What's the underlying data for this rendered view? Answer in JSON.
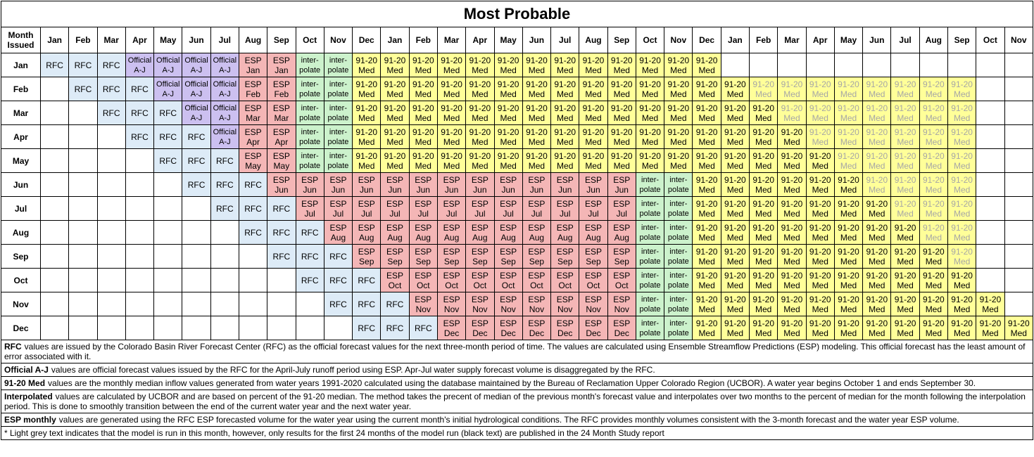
{
  "title": "Most Probable",
  "header": {
    "corner": "Month Issued",
    "months": [
      "Jan",
      "Feb",
      "Mar",
      "Apr",
      "May",
      "Jun",
      "Jul",
      "Aug",
      "Sep",
      "Oct",
      "Nov",
      "Dec",
      "Jan",
      "Feb",
      "Mar",
      "Apr",
      "May",
      "Jun",
      "Jul",
      "Aug",
      "Sep",
      "Oct",
      "Nov",
      "Dec",
      "Jan",
      "Feb",
      "Mar",
      "Apr",
      "May",
      "Jun",
      "Jul",
      "Aug",
      "Sep",
      "Oct",
      "Nov"
    ]
  },
  "rows": [
    {
      "month": "Jan",
      "cells": [
        "RFC",
        "RFC",
        "RFC",
        "Official A-J",
        "Official A-J",
        "Official A-J",
        "Official A-J",
        "ESP Jan",
        "ESP Jan",
        "inter-polate",
        "inter-polate",
        "91-20 Med",
        "91-20 Med",
        "91-20 Med",
        "91-20 Med",
        "91-20 Med",
        "91-20 Med",
        "91-20 Med",
        "91-20 Med",
        "91-20 Med",
        "91-20 Med",
        "91-20 Med",
        "91-20 Med",
        "91-20 Med",
        null,
        null,
        null,
        null,
        null,
        null,
        null,
        null,
        null,
        null,
        null
      ]
    },
    {
      "month": "Feb",
      "cells": [
        null,
        "RFC",
        "RFC",
        "RFC",
        "Official A-J",
        "Official A-J",
        "Official A-J",
        "ESP Feb",
        "ESP Feb",
        "inter-polate",
        "inter-polate",
        "91-20 Med",
        "91-20 Med",
        "91-20 Med",
        "91-20 Med",
        "91-20 Med",
        "91-20 Med",
        "91-20 Med",
        "91-20 Med",
        "91-20 Med",
        "91-20 Med",
        "91-20 Med",
        "91-20 Med",
        "91-20 Med",
        "91-20 Med",
        {
          "text": "91-20 Med",
          "grey": true
        },
        {
          "text": "91-20 Med",
          "grey": true
        },
        {
          "text": "91-20 Med",
          "grey": true
        },
        {
          "text": "91-20 Med",
          "grey": true
        },
        {
          "text": "91-20 Med",
          "grey": true
        },
        {
          "text": "91-20 Med",
          "grey": true
        },
        {
          "text": "91-20 Med",
          "grey": true
        },
        {
          "text": "91-20 Med",
          "grey": true
        },
        null,
        null
      ]
    },
    {
      "month": "Mar",
      "cells": [
        null,
        null,
        "RFC",
        "RFC",
        "RFC",
        "Official A-J",
        "Official A-J",
        "ESP Mar",
        "ESP Mar",
        "inter-polate",
        "inter-polate",
        "91-20 Med",
        "91-20 Med",
        "91-20 Med",
        "91-20 Med",
        "91-20 Med",
        "91-20 Med",
        "91-20 Med",
        "91-20 Med",
        "91-20 Med",
        "91-20 Med",
        "91-20 Med",
        "91-20 Med",
        "91-20 Med",
        "91-20 Med",
        "91-20 Med",
        {
          "text": "91-20 Med",
          "grey": true
        },
        {
          "text": "91-20 Med",
          "grey": true
        },
        {
          "text": "91-20 Med",
          "grey": true
        },
        {
          "text": "91-20 Med",
          "grey": true
        },
        {
          "text": "91-20 Med",
          "grey": true
        },
        {
          "text": "91-20 Med",
          "grey": true
        },
        {
          "text": "91-20 Med",
          "grey": true
        },
        null,
        null
      ]
    },
    {
      "month": "Apr",
      "cells": [
        null,
        null,
        null,
        "RFC",
        "RFC",
        "RFC",
        "Official A-J",
        "ESP Apr",
        "ESP Apr",
        "inter-polate",
        "inter-polate",
        "91-20 Med",
        "91-20 Med",
        "91-20 Med",
        "91-20 Med",
        "91-20 Med",
        "91-20 Med",
        "91-20 Med",
        "91-20 Med",
        "91-20 Med",
        "91-20 Med",
        "91-20 Med",
        "91-20 Med",
        "91-20 Med",
        "91-20 Med",
        "91-20 Med",
        "91-20 Med",
        {
          "text": "91-20 Med",
          "grey": true
        },
        {
          "text": "91-20 Med",
          "grey": true
        },
        {
          "text": "91-20 Med",
          "grey": true
        },
        {
          "text": "91-20 Med",
          "grey": true
        },
        {
          "text": "91-20 Med",
          "grey": true
        },
        {
          "text": "91-20 Med",
          "grey": true
        },
        null,
        null
      ]
    },
    {
      "month": "May",
      "cells": [
        null,
        null,
        null,
        null,
        "RFC",
        "RFC",
        "RFC",
        "ESP May",
        "ESP May",
        "inter-polate",
        "inter-polate",
        "91-20 Med",
        "91-20 Med",
        "91-20 Med",
        "91-20 Med",
        "91-20 Med",
        "91-20 Med",
        "91-20 Med",
        "91-20 Med",
        "91-20 Med",
        "91-20 Med",
        "91-20 Med",
        "91-20 Med",
        "91-20 Med",
        "91-20 Med",
        "91-20 Med",
        "91-20 Med",
        "91-20 Med",
        {
          "text": "91-20 Med",
          "grey": true
        },
        {
          "text": "91-20 Med",
          "grey": true
        },
        {
          "text": "91-20 Med",
          "grey": true
        },
        {
          "text": "91-20 Med",
          "grey": true
        },
        {
          "text": "91-20 Med",
          "grey": true
        },
        null,
        null
      ]
    },
    {
      "month": "Jun",
      "cells": [
        null,
        null,
        null,
        null,
        null,
        "RFC",
        "RFC",
        "RFC",
        "ESP Jun",
        "ESP Jun",
        "ESP Jun",
        "ESP Jun",
        "ESP Jun",
        "ESP Jun",
        "ESP Jun",
        "ESP Jun",
        "ESP Jun",
        "ESP Jun",
        "ESP Jun",
        "ESP Jun",
        "ESP Jun",
        "inter-polate",
        "inter-polate",
        "91-20 Med",
        "91-20 Med",
        "91-20 Med",
        "91-20 Med",
        "91-20 Med",
        "91-20 Med",
        {
          "text": "91-20 Med",
          "grey": true
        },
        {
          "text": "91-20 Med",
          "grey": true
        },
        {
          "text": "91-20 Med",
          "grey": true
        },
        {
          "text": "91-20 Med",
          "grey": true
        },
        null,
        null
      ]
    },
    {
      "month": "Jul",
      "cells": [
        null,
        null,
        null,
        null,
        null,
        null,
        "RFC",
        "RFC",
        "RFC",
        "ESP Jul",
        "ESP Jul",
        "ESP Jul",
        "ESP Jul",
        "ESP Jul",
        "ESP Jul",
        "ESP Jul",
        "ESP Jul",
        "ESP Jul",
        "ESP Jul",
        "ESP Jul",
        "ESP Jul",
        "inter-polate",
        "inter-polate",
        "91-20 Med",
        "91-20 Med",
        "91-20 Med",
        "91-20 Med",
        "91-20 Med",
        "91-20 Med",
        "91-20 Med",
        {
          "text": "91-20 Med",
          "grey": true
        },
        {
          "text": "91-20 Med",
          "grey": true
        },
        {
          "text": "91-20 Med",
          "grey": true
        },
        null,
        null
      ]
    },
    {
      "month": "Aug",
      "cells": [
        null,
        null,
        null,
        null,
        null,
        null,
        null,
        "RFC",
        "RFC",
        "RFC",
        "ESP Aug",
        "ESP Aug",
        "ESP Aug",
        "ESP Aug",
        "ESP Aug",
        "ESP Aug",
        "ESP Aug",
        "ESP Aug",
        "ESP Aug",
        "ESP Aug",
        "ESP Aug",
        "inter-polate",
        "inter-polate",
        "91-20 Med",
        "91-20 Med",
        "91-20 Med",
        "91-20 Med",
        "91-20 Med",
        "91-20 Med",
        "91-20 Med",
        "91-20 Med",
        {
          "text": "91-20 Med",
          "grey": true
        },
        {
          "text": "91-20 Med",
          "grey": true
        },
        null,
        null
      ]
    },
    {
      "month": "Sep",
      "cells": [
        null,
        null,
        null,
        null,
        null,
        null,
        null,
        null,
        "RFC",
        "RFC",
        "RFC",
        "ESP Sep",
        "ESP Sep",
        "ESP Sep",
        "ESP Sep",
        "ESP Sep",
        "ESP Sep",
        "ESP Sep",
        "ESP Sep",
        "ESP Sep",
        "ESP Sep",
        "inter-polate",
        "inter-polate",
        "91-20 Med",
        "91-20 Med",
        "91-20 Med",
        "91-20 Med",
        "91-20 Med",
        "91-20 Med",
        "91-20 Med",
        "91-20 Med",
        "91-20 Med",
        {
          "text": "91-20 Med",
          "grey": true
        },
        null,
        null
      ]
    },
    {
      "month": "Oct",
      "cells": [
        null,
        null,
        null,
        null,
        null,
        null,
        null,
        null,
        null,
        "RFC",
        "RFC",
        "RFC",
        "ESP Oct",
        "ESP Oct",
        "ESP Oct",
        "ESP Oct",
        "ESP Oct",
        "ESP Oct",
        "ESP Oct",
        "ESP Oct",
        "ESP Oct",
        "inter-polate",
        "inter-polate",
        "91-20 Med",
        "91-20 Med",
        "91-20 Med",
        "91-20 Med",
        "91-20 Med",
        "91-20 Med",
        "91-20 Med",
        "91-20 Med",
        "91-20 Med",
        "91-20 Med",
        null,
        null
      ]
    },
    {
      "month": "Nov",
      "cells": [
        null,
        null,
        null,
        null,
        null,
        null,
        null,
        null,
        null,
        null,
        "RFC",
        "RFC",
        "RFC",
        "ESP Nov",
        "ESP Nov",
        "ESP Nov",
        "ESP Nov",
        "ESP Nov",
        "ESP Nov",
        "ESP Nov",
        "ESP Nov",
        "inter-polate",
        "inter-polate",
        "91-20 Med",
        "91-20 Med",
        "91-20 Med",
        "91-20 Med",
        "91-20 Med",
        "91-20 Med",
        "91-20 Med",
        "91-20 Med",
        "91-20 Med",
        "91-20 Med",
        "91-20 Med",
        null
      ]
    },
    {
      "month": "Dec",
      "cells": [
        null,
        null,
        null,
        null,
        null,
        null,
        null,
        null,
        null,
        null,
        null,
        "RFC",
        "RFC",
        "RFC",
        "ESP Dec",
        "ESP Dec",
        "ESP Dec",
        "ESP Dec",
        "ESP Dec",
        "ESP Dec",
        "ESP Dec",
        "inter-polate",
        "inter-polate",
        "91-20 Med",
        "91-20 Med",
        "91-20 Med",
        "91-20 Med",
        "91-20 Med",
        "91-20 Med",
        "91-20 Med",
        "91-20 Med",
        "91-20 Med",
        "91-20 Med",
        "91-20 Med",
        "91-20 Med"
      ]
    }
  ],
  "notes": [
    {
      "term": "RFC",
      "text": "values are issued by the Colorado Basin River Forecast Center (RFC) as the official forecast values for the next three-month period of time.  The values are calculated using Ensemble Streamflow Predictions (ESP) modeling.  This official forecast has the least amount of error associated with it."
    },
    {
      "term": "Official A-J",
      "text": "values are official forecast values issued by the RFC for the April-July runoff period using ESP. Apr-Jul water supply forecast volume is disaggregated by the RFC."
    },
    {
      "term": "91-20 Med",
      "text": "values are the monthly median inflow values generated from water years 1991-2020 calculated using the database maintained by the Bureau of Reclamation Upper Colorado Region (UCBOR).  A water year begins October 1 and ends September 30."
    },
    {
      "term": "Interpolated",
      "text": "values are calculated by UCBOR and are based on percent of the 91-20 median.  The method takes the precent of median of the previous month's forecast value and interpolates over two months to the percent of median for the month following the interpolation period.  This is done to smoothly transition between the end of the current water year and the next water year."
    },
    {
      "term": "ESP monthly",
      "text": "values are generated using the RFC ESP forecasted volume for the water year using the current month's initial hydrological conditions.  The RFC provides monthly volumes consistent with the 3-month forecast and the water year ESP volume."
    },
    {
      "text": "* Light grey text indicates that the model is run in this month, however, only results for the first 24 months of the model run (black text) are published in the 24 Month Study report"
    }
  ]
}
